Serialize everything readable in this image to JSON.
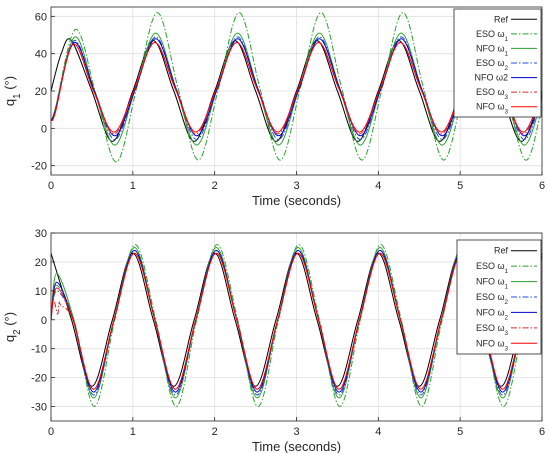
{
  "chart_data": [
    {
      "type": "line",
      "ylabel_base": "q",
      "ylabel_sub": "1",
      "ylabel_unit": "(°)",
      "xlabel": "Time (seconds)",
      "xlim": [
        0,
        6
      ],
      "ylim": [
        -25,
        65
      ],
      "xticks": [
        0,
        1,
        2,
        3,
        4,
        5,
        6
      ],
      "yticks": [
        -20,
        0,
        20,
        40,
        60
      ],
      "grid": true,
      "legend_position": "top-right",
      "legend": [
        {
          "base": "Ref",
          "sub": ""
        },
        {
          "base": "ESO ω",
          "sub": "1"
        },
        {
          "base": "NFO ω",
          "sub": "1"
        },
        {
          "base": "ESO ω",
          "sub": "2"
        },
        {
          "base": "NFO ω2",
          "sub": ""
        },
        {
          "base": "ESO ω",
          "sub": "3"
        },
        {
          "base": "NFO ω",
          "sub": "3"
        }
      ],
      "series": [
        {
          "color": "#000000",
          "dash": "solid",
          "x": [
            0,
            0.125,
            0.25,
            0.5,
            0.75,
            1,
            1.25,
            1.5,
            1.75,
            2,
            2.25,
            2.5,
            2.75,
            3,
            3.25,
            3.5,
            3.75,
            4,
            4.25,
            4.5,
            4.75,
            5,
            5.25,
            5.5,
            5.75,
            6
          ],
          "y": [
            20,
            40,
            47,
            20,
            -7,
            20,
            47,
            20,
            -7,
            20,
            47,
            20,
            -7,
            20,
            47,
            20,
            -7,
            20,
            47,
            20,
            -7,
            20,
            47,
            20,
            -7,
            20
          ]
        },
        {
          "color": "#2ca02c",
          "dash": "dashdot",
          "x": [
            0,
            0.05,
            0.3,
            0.55,
            0.8,
            1.05,
            1.3,
            1.55,
            1.8,
            2.05,
            2.3,
            2.55,
            2.8,
            3.05,
            3.3,
            3.55,
            3.8,
            4.05,
            4.3,
            4.55,
            4.8,
            5.05,
            5.3,
            5.55,
            5.8,
            6
          ],
          "y": [
            5,
            10,
            53,
            18,
            -18,
            22,
            62,
            22,
            -17,
            22,
            62,
            22,
            -17,
            22,
            62,
            22,
            -17,
            22,
            62,
            22,
            -17,
            22,
            62,
            22,
            -17,
            12
          ]
        },
        {
          "color": "#2ca02c",
          "dash": "solid",
          "x": [
            0,
            0.05,
            0.29,
            0.53,
            0.78,
            1.03,
            1.28,
            1.53,
            1.78,
            2.03,
            2.28,
            2.53,
            2.78,
            3.03,
            3.28,
            3.53,
            3.78,
            4.03,
            4.28,
            4.53,
            4.78,
            5.03,
            5.28,
            5.53,
            5.78,
            6
          ],
          "y": [
            5,
            10,
            49,
            20,
            -9,
            21,
            51,
            21,
            -9,
            21,
            51,
            21,
            -9,
            21,
            51,
            21,
            -9,
            21,
            51,
            21,
            -9,
            21,
            51,
            21,
            -9,
            16
          ]
        },
        {
          "color": "#1f4fd6",
          "dash": "dashdot",
          "x": [
            0,
            0.05,
            0.28,
            0.53,
            0.78,
            1.03,
            1.28,
            1.53,
            1.78,
            2.03,
            2.28,
            2.53,
            2.78,
            3.03,
            3.28,
            3.53,
            3.78,
            4.03,
            4.28,
            4.53,
            4.78,
            5.03,
            5.28,
            5.53,
            5.78,
            6
          ],
          "y": [
            5,
            9,
            47,
            20,
            -6,
            21,
            49,
            21,
            -6,
            21,
            49,
            21,
            -6,
            21,
            49,
            21,
            -6,
            21,
            49,
            21,
            -6,
            21,
            49,
            21,
            -6,
            17
          ]
        },
        {
          "color": "#0000cc",
          "dash": "solid",
          "x": [
            0,
            0.05,
            0.28,
            0.53,
            0.78,
            1.03,
            1.28,
            1.53,
            1.78,
            2.03,
            2.28,
            2.53,
            2.78,
            3.03,
            3.28,
            3.53,
            3.78,
            4.03,
            4.28,
            4.53,
            4.78,
            5.03,
            5.28,
            5.53,
            5.78,
            6
          ],
          "y": [
            5,
            9,
            46,
            20,
            -4,
            21,
            48,
            21,
            -4,
            21,
            48,
            21,
            -4,
            21,
            48,
            21,
            -4,
            21,
            48,
            21,
            -4,
            21,
            48,
            21,
            -4,
            18
          ]
        },
        {
          "color": "#d62728",
          "dash": "dashdot",
          "x": [
            0,
            0.05,
            0.27,
            0.52,
            0.77,
            1.02,
            1.27,
            1.52,
            1.77,
            2.02,
            2.27,
            2.52,
            2.77,
            3.02,
            3.27,
            3.52,
            3.77,
            4.02,
            4.27,
            4.52,
            4.77,
            5.02,
            5.27,
            5.52,
            5.77,
            6
          ],
          "y": [
            5,
            8,
            45,
            20,
            -3,
            21,
            46,
            21,
            -3,
            21,
            46,
            21,
            -3,
            21,
            46,
            21,
            -3,
            21,
            46,
            21,
            -3,
            21,
            46,
            21,
            -3,
            19
          ]
        },
        {
          "color": "#ff0000",
          "dash": "solid",
          "x": [
            0,
            0.05,
            0.27,
            0.52,
            0.77,
            1.02,
            1.27,
            1.52,
            1.77,
            2.02,
            2.27,
            2.52,
            2.77,
            3.02,
            3.27,
            3.52,
            3.77,
            4.02,
            4.27,
            4.52,
            4.77,
            5.02,
            5.27,
            5.52,
            5.77,
            6
          ],
          "y": [
            5,
            8,
            45,
            20,
            -2,
            21,
            46,
            21,
            -2,
            21,
            46,
            21,
            -2,
            21,
            46,
            21,
            -2,
            21,
            46,
            21,
            -2,
            21,
            46,
            21,
            -2,
            20
          ]
        }
      ]
    },
    {
      "type": "line",
      "ylabel_base": "q",
      "ylabel_sub": "2",
      "ylabel_unit": "(°)",
      "xlabel": "Time (seconds)",
      "xlim": [
        0,
        6
      ],
      "ylim": [
        -35,
        30
      ],
      "xticks": [
        0,
        1,
        2,
        3,
        4,
        5,
        6
      ],
      "yticks": [
        -30,
        -20,
        -10,
        0,
        10,
        20,
        30
      ],
      "grid": true,
      "legend_position": "top-right",
      "legend": [
        {
          "base": "Ref",
          "sub": ""
        },
        {
          "base": "ESO ω",
          "sub": "1"
        },
        {
          "base": "NFO ω",
          "sub": "1"
        },
        {
          "base": "ESO ω",
          "sub": "2"
        },
        {
          "base": "NFO ω",
          "sub": "2"
        },
        {
          "base": "ESO ω",
          "sub": "3"
        },
        {
          "base": "NFO ω",
          "sub": "3"
        }
      ],
      "series": [
        {
          "color": "#000000",
          "dash": "solid",
          "x": [
            0,
            0.25,
            0.5,
            0.75,
            1,
            1.25,
            1.5,
            1.75,
            2,
            2.25,
            2.5,
            2.75,
            3,
            3.25,
            3.5,
            3.75,
            4,
            4.25,
            4.5,
            4.75,
            5,
            5.25,
            5.5,
            5.75,
            6
          ],
          "y": [
            23,
            0,
            -23,
            0,
            23,
            0,
            -23,
            0,
            23,
            0,
            -23,
            0,
            23,
            0,
            -23,
            0,
            23,
            0,
            -23,
            0,
            23,
            0,
            -23,
            0,
            23
          ]
        },
        {
          "color": "#2ca02c",
          "dash": "dashdot",
          "x": [
            0,
            0.06,
            0.28,
            0.53,
            0.78,
            1.03,
            1.28,
            1.53,
            1.78,
            2.03,
            2.28,
            2.53,
            2.78,
            3.03,
            3.28,
            3.53,
            3.78,
            4.03,
            4.28,
            4.53,
            4.78,
            5.03,
            5.28,
            5.53,
            5.78,
            6
          ],
          "y": [
            0,
            12,
            0,
            -30,
            0,
            26,
            0,
            -30,
            0,
            26,
            0,
            -30,
            0,
            26,
            0,
            -30,
            0,
            26,
            0,
            -30,
            0,
            26,
            0,
            -30,
            0,
            24
          ]
        },
        {
          "color": "#2ca02c",
          "dash": "solid",
          "x": [
            0,
            0.07,
            0.28,
            0.52,
            0.77,
            1.02,
            1.27,
            1.52,
            1.77,
            2.02,
            2.27,
            2.52,
            2.77,
            3.02,
            3.27,
            3.52,
            3.77,
            4.02,
            4.27,
            4.52,
            4.77,
            5.02,
            5.27,
            5.52,
            5.77,
            6
          ],
          "y": [
            0,
            16,
            0,
            -27,
            0,
            25,
            0,
            -27,
            0,
            25,
            0,
            -27,
            0,
            25,
            0,
            -27,
            0,
            25,
            0,
            -27,
            0,
            25,
            0,
            -27,
            0,
            23
          ]
        },
        {
          "color": "#1f4fd6",
          "dash": "dashdot",
          "x": [
            0,
            0.07,
            0.27,
            0.52,
            0.77,
            1.02,
            1.27,
            1.52,
            1.77,
            2.02,
            2.27,
            2.52,
            2.77,
            3.02,
            3.27,
            3.52,
            3.77,
            4.02,
            4.27,
            4.52,
            4.77,
            5.02,
            5.27,
            5.52,
            5.77,
            6
          ],
          "y": [
            0,
            10,
            0,
            -26,
            0,
            24,
            0,
            -26,
            0,
            24,
            0,
            -26,
            0,
            24,
            0,
            -26,
            0,
            24,
            0,
            -26,
            0,
            24,
            0,
            -26,
            0,
            23
          ]
        },
        {
          "color": "#0000cc",
          "dash": "solid",
          "x": [
            0,
            0.07,
            0.27,
            0.52,
            0.77,
            1.02,
            1.27,
            1.52,
            1.77,
            2.02,
            2.27,
            2.52,
            2.77,
            3.02,
            3.27,
            3.52,
            3.77,
            4.02,
            4.27,
            4.52,
            4.77,
            5.02,
            5.27,
            5.52,
            5.77,
            6
          ],
          "y": [
            0,
            13,
            0,
            -25,
            0,
            24,
            0,
            -25,
            0,
            24,
            0,
            -25,
            0,
            24,
            0,
            -25,
            0,
            24,
            0,
            -25,
            0,
            24,
            0,
            -25,
            0,
            22
          ]
        },
        {
          "color": "#d62728",
          "dash": "dashdot",
          "x": [
            0,
            0.03,
            0.08,
            0.1,
            0.12,
            0.27,
            0.52,
            0.77,
            1.02,
            1.27,
            1.52,
            1.77,
            2.02,
            2.27,
            2.52,
            2.77,
            3.02,
            3.27,
            3.52,
            3.77,
            4.02,
            4.27,
            4.52,
            4.77,
            5.02,
            5.27,
            5.52,
            5.77,
            6
          ],
          "y": [
            0,
            7,
            2,
            6,
            5,
            0,
            -24,
            0,
            23,
            0,
            -24,
            0,
            23,
            0,
            -24,
            0,
            23,
            0,
            -24,
            0,
            23,
            0,
            -24,
            0,
            23,
            0,
            -24,
            0,
            22
          ]
        },
        {
          "color": "#ff0000",
          "dash": "solid",
          "x": [
            0,
            0.07,
            0.27,
            0.52,
            0.77,
            1.02,
            1.27,
            1.52,
            1.77,
            2.02,
            2.27,
            2.52,
            2.77,
            3.02,
            3.27,
            3.52,
            3.77,
            4.02,
            4.27,
            4.52,
            4.77,
            5.02,
            5.27,
            5.52,
            5.77,
            6
          ],
          "y": [
            0,
            11,
            0,
            -24,
            0,
            23,
            0,
            -24,
            0,
            23,
            0,
            -24,
            0,
            23,
            0,
            -24,
            0,
            23,
            0,
            -24,
            0,
            23,
            0,
            -24,
            0,
            22
          ]
        }
      ]
    }
  ]
}
